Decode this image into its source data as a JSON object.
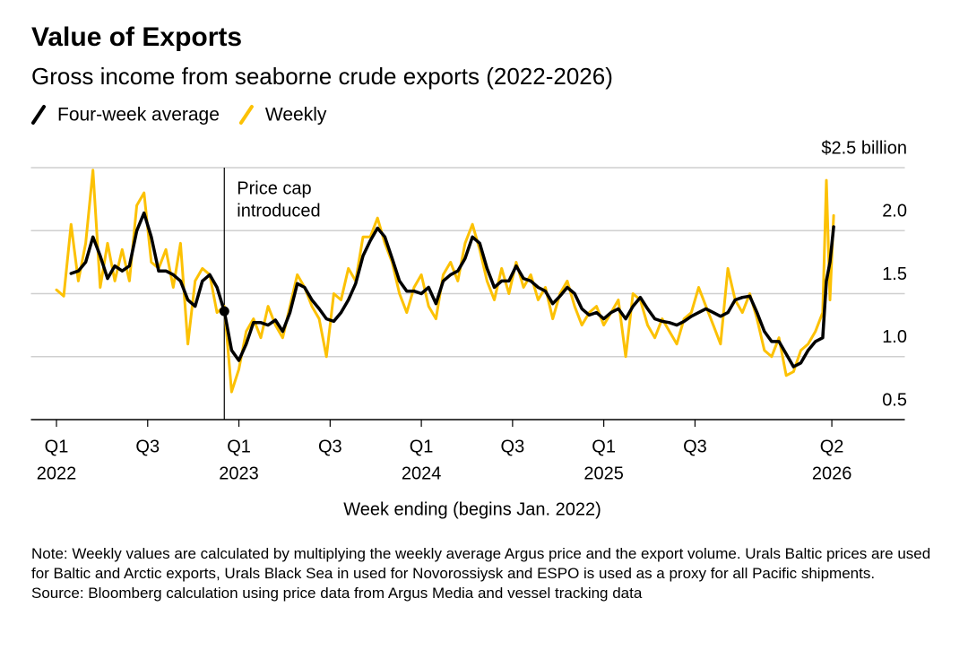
{
  "chart_data": {
    "type": "line",
    "title": "Value of Exports",
    "subtitle": "Gross income from seaborne crude exports (2022-2026)",
    "xlabel": "Week ending (begins Jan. 2022)",
    "note": "Note: Weekly values are calculated by multiplying the weekly average Argus price and the export volume. Urals Baltic prices are used for Baltic and Arctic exports, Urals Black Sea in used for Novorossiysk and ESPO is used as a proxy for all Pacific shipments.",
    "source": "Source: Bloomberg calculation using price data from Argus Media and vessel tracking data",
    "annotation": {
      "text": [
        "Price cap",
        "introduced"
      ],
      "x": 2022.92,
      "y": 1.36
    },
    "xlim": [
      2021.86,
      2026.65
    ],
    "xticks": [
      {
        "value": 2022.0,
        "label": "Q1"
      },
      {
        "value": 2022.5,
        "label": "Q3"
      },
      {
        "value": 2023.0,
        "label": "Q1"
      },
      {
        "value": 2023.5,
        "label": "Q3"
      },
      {
        "value": 2024.0,
        "label": "Q1"
      },
      {
        "value": 2024.5,
        "label": "Q3"
      },
      {
        "value": 2025.0,
        "label": "Q1"
      },
      {
        "value": 2025.5,
        "label": "Q3"
      },
      {
        "value": 2026.25,
        "label": "Q2"
      }
    ],
    "xtick_years": [
      {
        "value": 2022.0,
        "label": "2022"
      },
      {
        "value": 2023.0,
        "label": "2023"
      },
      {
        "value": 2024.0,
        "label": "2024"
      },
      {
        "value": 2025.0,
        "label": "2025"
      },
      {
        "value": 2026.25,
        "label": "2026"
      }
    ],
    "ylim": [
      0.5,
      2.5
    ],
    "yticks": [
      0.5,
      {
        "value": 1.0,
        "label": "1.0"
      },
      1.5,
      {
        "value": 2.0,
        "label": "2.0"
      },
      {
        "value": 2.5,
        "label": "$2.5 billion"
      }
    ],
    "grid": true,
    "x": [
      2022.0,
      2022.04,
      2022.08,
      2022.12,
      2022.16,
      2022.2,
      2022.24,
      2022.28,
      2022.32,
      2022.36,
      2022.4,
      2022.44,
      2022.48,
      2022.52,
      2022.56,
      2022.6,
      2022.64,
      2022.68,
      2022.72,
      2022.76,
      2022.8,
      2022.84,
      2022.88,
      2022.92,
      2022.96,
      2023.0,
      2023.04,
      2023.08,
      2023.12,
      2023.16,
      2023.2,
      2023.24,
      2023.28,
      2023.32,
      2023.36,
      2023.4,
      2023.44,
      2023.48,
      2023.52,
      2023.56,
      2023.6,
      2023.64,
      2023.68,
      2023.72,
      2023.76,
      2023.8,
      2023.84,
      2023.88,
      2023.92,
      2023.96,
      2024.0,
      2024.04,
      2024.08,
      2024.12,
      2024.16,
      2024.2,
      2024.24,
      2024.28,
      2024.32,
      2024.36,
      2024.4,
      2024.44,
      2024.48,
      2024.52,
      2024.56,
      2024.6,
      2024.64,
      2024.68,
      2024.72,
      2024.76,
      2024.8,
      2024.84,
      2024.88,
      2024.92,
      2024.96,
      2025.0,
      2025.04,
      2025.08,
      2025.12,
      2025.16,
      2025.2,
      2025.24,
      2025.28,
      2025.32,
      2025.36,
      2025.4,
      2025.44,
      2025.48,
      2025.52,
      2025.56,
      2025.6,
      2025.64,
      2025.68,
      2025.72,
      2025.76,
      2025.8,
      2025.84,
      2025.88,
      2025.92,
      2025.96,
      2026.0,
      2026.04,
      2026.08,
      2026.12,
      2026.16,
      2026.2,
      2026.22,
      2026.24,
      2026.26
    ],
    "series": [
      {
        "name": "Weekly",
        "color": "#fcc104",
        "values": [
          1.53,
          1.48,
          2.05,
          1.6,
          1.9,
          2.48,
          1.55,
          1.9,
          1.6,
          1.85,
          1.6,
          2.2,
          2.3,
          1.75,
          1.7,
          1.85,
          1.55,
          1.9,
          1.1,
          1.6,
          1.7,
          1.65,
          1.35,
          1.4,
          0.72,
          0.9,
          1.2,
          1.3,
          1.15,
          1.4,
          1.25,
          1.15,
          1.4,
          1.65,
          1.55,
          1.4,
          1.3,
          1.0,
          1.5,
          1.45,
          1.7,
          1.6,
          1.95,
          1.95,
          2.1,
          1.9,
          1.75,
          1.5,
          1.35,
          1.55,
          1.65,
          1.4,
          1.3,
          1.65,
          1.75,
          1.6,
          1.9,
          2.05,
          1.85,
          1.6,
          1.45,
          1.7,
          1.5,
          1.75,
          1.55,
          1.65,
          1.45,
          1.55,
          1.3,
          1.5,
          1.6,
          1.4,
          1.25,
          1.35,
          1.4,
          1.25,
          1.35,
          1.45,
          1.0,
          1.5,
          1.45,
          1.25,
          1.15,
          1.3,
          1.2,
          1.1,
          1.3,
          1.35,
          1.55,
          1.4,
          1.25,
          1.1,
          1.7,
          1.45,
          1.35,
          1.5,
          1.3,
          1.05,
          1.0,
          1.15,
          0.85,
          0.88,
          1.05,
          1.1,
          1.2,
          1.35,
          2.4,
          1.45,
          2.12
        ]
      },
      {
        "name": "Four-week average",
        "color": "#000000",
        "values": [
          null,
          null,
          1.66,
          1.68,
          1.75,
          1.95,
          1.8,
          1.62,
          1.72,
          1.68,
          1.72,
          2.0,
          2.14,
          1.95,
          1.68,
          1.68,
          1.65,
          1.6,
          1.45,
          1.4,
          1.6,
          1.65,
          1.55,
          1.36,
          1.05,
          0.97,
          1.1,
          1.27,
          1.27,
          1.25,
          1.29,
          1.2,
          1.35,
          1.58,
          1.55,
          1.45,
          1.38,
          1.3,
          1.28,
          1.35,
          1.45,
          1.58,
          1.8,
          1.92,
          2.02,
          1.95,
          1.78,
          1.6,
          1.52,
          1.52,
          1.5,
          1.55,
          1.42,
          1.6,
          1.65,
          1.68,
          1.78,
          1.95,
          1.9,
          1.7,
          1.55,
          1.6,
          1.6,
          1.72,
          1.62,
          1.6,
          1.55,
          1.52,
          1.42,
          1.48,
          1.55,
          1.5,
          1.38,
          1.33,
          1.35,
          1.3,
          1.35,
          1.38,
          1.3,
          1.4,
          1.47,
          1.38,
          1.3,
          1.28,
          1.27,
          1.25,
          1.28,
          1.32,
          1.35,
          1.38,
          1.35,
          1.32,
          1.35,
          1.45,
          1.47,
          1.48,
          1.35,
          1.2,
          1.12,
          1.12,
          1.02,
          0.92,
          0.95,
          1.05,
          1.12,
          1.15,
          1.6,
          1.75,
          2.03
        ]
      }
    ],
    "legend": "top-left"
  }
}
